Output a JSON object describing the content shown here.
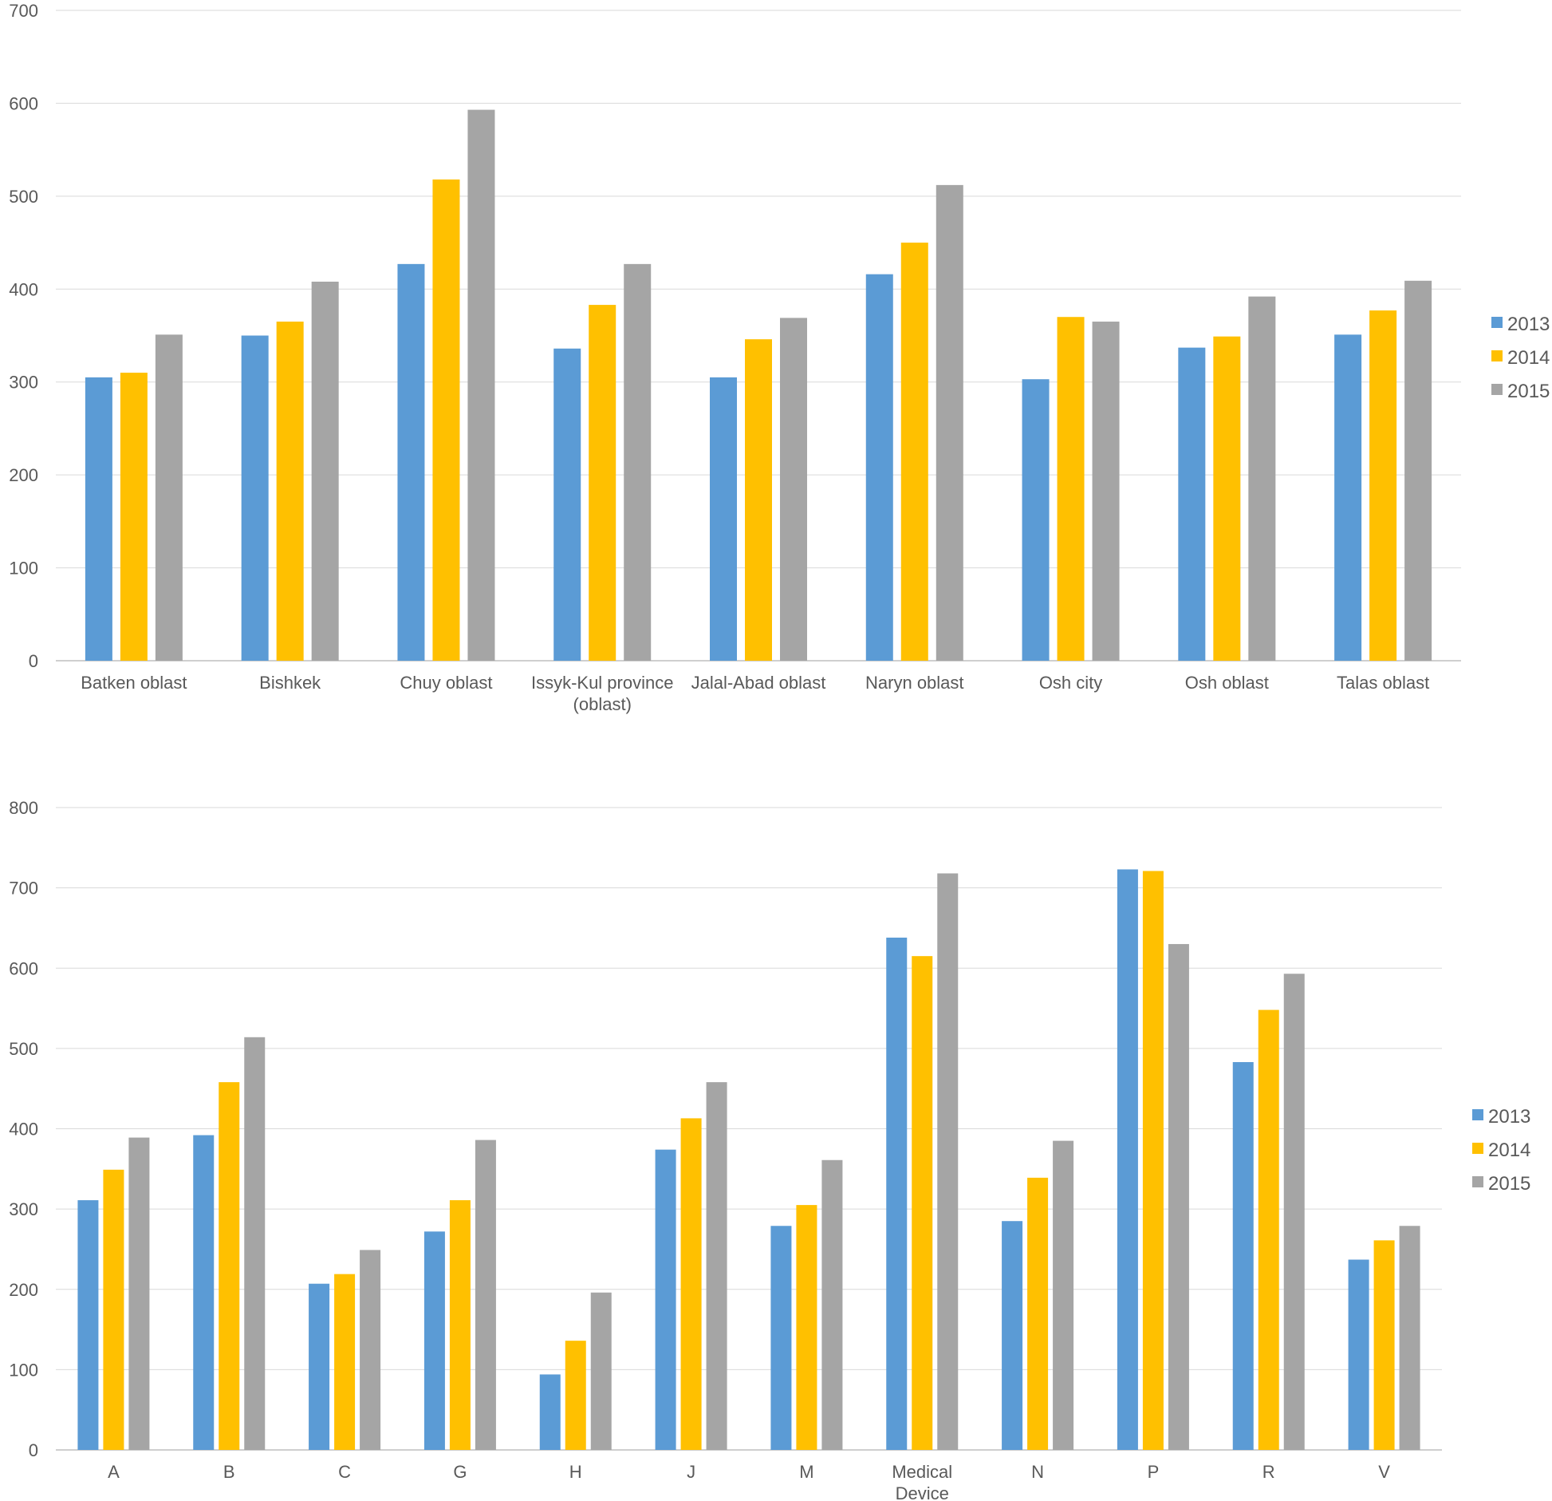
{
  "chart_data": [
    {
      "type": "bar",
      "title": "",
      "xlabel": "",
      "ylabel": "",
      "ylim": [
        0,
        700
      ],
      "yticks": [
        0,
        100,
        200,
        300,
        400,
        500,
        600,
        700
      ],
      "grid": true,
      "legend_position": "right",
      "categories": [
        [
          "Batken oblast"
        ],
        [
          "Bishkek"
        ],
        [
          "Chuy oblast"
        ],
        [
          "Issyk-Kul province",
          "(oblast)"
        ],
        [
          "Jalal-Abad oblast"
        ],
        [
          "Naryn oblast"
        ],
        [
          "Osh city"
        ],
        [
          "Osh oblast"
        ],
        [
          "Talas oblast"
        ]
      ],
      "series": [
        {
          "name": "2013",
          "color": "#5b9bd5",
          "values": [
            305,
            350,
            427,
            336,
            305,
            416,
            303,
            337,
            351
          ]
        },
        {
          "name": "2014",
          "color": "#ffc000",
          "values": [
            310,
            365,
            518,
            383,
            346,
            450,
            370,
            349,
            377
          ]
        },
        {
          "name": "2015",
          "color": "#a5a5a5",
          "values": [
            351,
            408,
            593,
            427,
            369,
            512,
            365,
            392,
            409
          ]
        }
      ]
    },
    {
      "type": "bar",
      "title": "",
      "xlabel": "",
      "ylabel": "",
      "ylim": [
        0,
        800
      ],
      "yticks": [
        0,
        100,
        200,
        300,
        400,
        500,
        600,
        700,
        800
      ],
      "grid": true,
      "legend_position": "right",
      "categories": [
        [
          "A"
        ],
        [
          "B"
        ],
        [
          "C"
        ],
        [
          "G"
        ],
        [
          "H"
        ],
        [
          "J"
        ],
        [
          "M"
        ],
        [
          "Medical",
          "Device"
        ],
        [
          "N"
        ],
        [
          "P"
        ],
        [
          "R"
        ],
        [
          "V"
        ]
      ],
      "series": [
        {
          "name": "2013",
          "color": "#5b9bd5",
          "values": [
            311,
            392,
            207,
            272,
            94,
            374,
            279,
            638,
            285,
            723,
            483,
            237
          ]
        },
        {
          "name": "2014",
          "color": "#ffc000",
          "values": [
            349,
            458,
            219,
            311,
            136,
            413,
            305,
            615,
            339,
            721,
            548,
            261
          ]
        },
        {
          "name": "2015",
          "color": "#a5a5a5",
          "values": [
            389,
            514,
            249,
            386,
            196,
            458,
            361,
            718,
            385,
            630,
            593,
            279
          ]
        }
      ]
    }
  ]
}
